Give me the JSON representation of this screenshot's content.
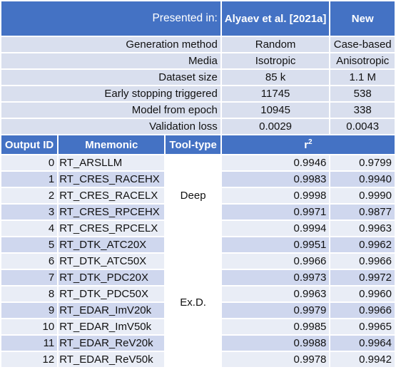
{
  "header": {
    "presented_in": "Presented in:",
    "columns": [
      "Alyaev et al. [2021a]",
      "New"
    ]
  },
  "meta_rows": [
    {
      "label": "Generation method",
      "values": [
        "Random",
        "Case-based"
      ]
    },
    {
      "label": "Media",
      "values": [
        "Isotropic",
        "Anisotropic"
      ]
    },
    {
      "label": "Dataset size",
      "values": [
        "85 k",
        "1.1 M"
      ]
    },
    {
      "label": "Early stopping triggered",
      "values": [
        "11745",
        "538"
      ]
    },
    {
      "label": "Model from epoch",
      "values": [
        "10945",
        "338"
      ]
    },
    {
      "label": "Validation loss",
      "values": [
        "0.0029",
        "0.0043"
      ]
    }
  ],
  "table_headers": {
    "output_id": "Output ID",
    "mnemonic": "Mnemonic",
    "tool_type": "Tool-type",
    "r2_base": "r",
    "r2_sup": "2"
  },
  "tool_groups": [
    "Deep",
    "Ex.D."
  ],
  "rows": [
    {
      "id": "0",
      "mnemonic": "RT_ARSLLM",
      "r2_old": "0.9946",
      "r2_new": "0.9799"
    },
    {
      "id": "1",
      "mnemonic": "RT_CRES_RACEHX",
      "r2_old": "0.9983",
      "r2_new": "0.9940"
    },
    {
      "id": "2",
      "mnemonic": "RT_CRES_RACELX",
      "r2_old": "0.9998",
      "r2_new": "0.9990"
    },
    {
      "id": "3",
      "mnemonic": "RT_CRES_RPCEHX",
      "r2_old": "0.9971",
      "r2_new": "0.9877"
    },
    {
      "id": "4",
      "mnemonic": "RT_CRES_RPCELX",
      "r2_old": "0.9994",
      "r2_new": "0.9963"
    },
    {
      "id": "5",
      "mnemonic": "RT_DTK_ATC20X",
      "r2_old": "0.9951",
      "r2_new": "0.9962"
    },
    {
      "id": "6",
      "mnemonic": "RT_DTK_ATC50X",
      "r2_old": "0.9966",
      "r2_new": "0.9966"
    },
    {
      "id": "7",
      "mnemonic": "RT_DTK_PDC20X",
      "r2_old": "0.9973",
      "r2_new": "0.9972"
    },
    {
      "id": "8",
      "mnemonic": "RT_DTK_PDC50X",
      "r2_old": "0.9963",
      "r2_new": "0.9960"
    },
    {
      "id": "9",
      "mnemonic": "RT_EDAR_ImV20k",
      "r2_old": "0.9979",
      "r2_new": "0.9966"
    },
    {
      "id": "10",
      "mnemonic": "RT_EDAR_ImV50k",
      "r2_old": "0.9985",
      "r2_new": "0.9965"
    },
    {
      "id": "11",
      "mnemonic": "RT_EDAR_ReV20k",
      "r2_old": "0.9988",
      "r2_new": "0.9964"
    },
    {
      "id": "12",
      "mnemonic": "RT_EDAR_ReV50k",
      "r2_old": "0.9978",
      "r2_new": "0.9942"
    }
  ]
}
